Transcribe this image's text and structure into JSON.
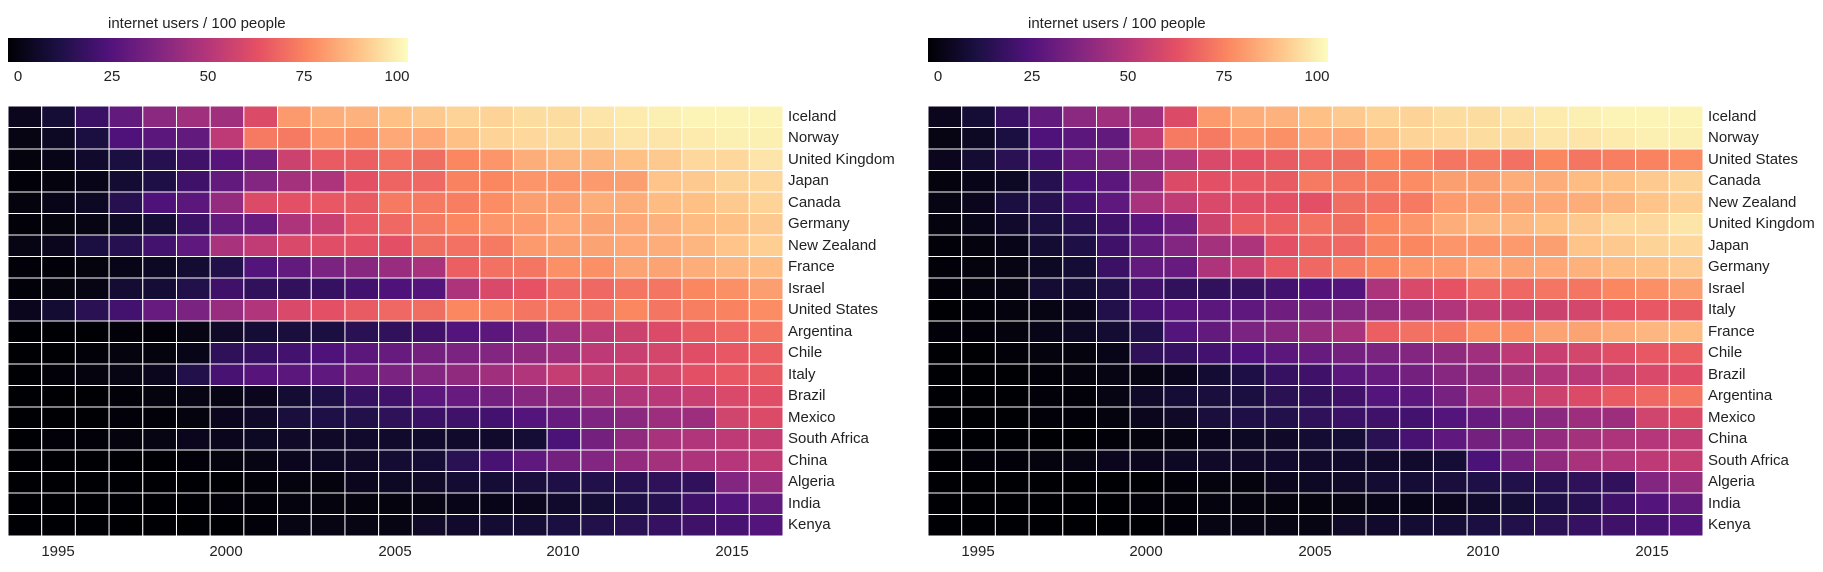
{
  "chart_data": [
    {
      "type": "heatmap",
      "colorbar": {
        "title": "internet users / 100 people",
        "ticks": [
          "0",
          "25",
          "50",
          "75",
          "100"
        ],
        "range": [
          0,
          100
        ],
        "colormap": "magma"
      },
      "x": [
        1994,
        1995,
        1996,
        1997,
        1998,
        1999,
        2000,
        2001,
        2002,
        2003,
        2004,
        2005,
        2006,
        2007,
        2008,
        2009,
        2010,
        2011,
        2012,
        2013,
        2014,
        2015,
        2016
      ],
      "x_tick_labels": [
        "1995",
        "2000",
        "2005",
        "2010",
        "2015"
      ],
      "rows": [
        "Iceland",
        "Norway",
        "United Kingdom",
        "Japan",
        "Canada",
        "Germany",
        "New Zealand",
        "France",
        "Israel",
        "United States",
        "Argentina",
        "Chile",
        "Italy",
        "Brazil",
        "Mexico",
        "South Africa",
        "China",
        "Algeria",
        "India",
        "Kenya"
      ],
      "values": [
        [
          5,
          10,
          20,
          30,
          40,
          45,
          45,
          60,
          79,
          83,
          84,
          87,
          89,
          91,
          91,
          93,
          93,
          95,
          96,
          97,
          98,
          98,
          98
        ],
        [
          3,
          6,
          12,
          25,
          28,
          30,
          52,
          72,
          72,
          78,
          77,
          82,
          82,
          87,
          91,
          92,
          93,
          93,
          95,
          95,
          96,
          97,
          97
        ],
        [
          2,
          4,
          8,
          12,
          15,
          21,
          27,
          33,
          56,
          65,
          66,
          70,
          69,
          75,
          78,
          83,
          85,
          85,
          87,
          89,
          92,
          92,
          95
        ],
        [
          1,
          2,
          4,
          9,
          13,
          21,
          30,
          38,
          46,
          48,
          62,
          67,
          68,
          74,
          75,
          78,
          78,
          79,
          80,
          88,
          89,
          91,
          92
        ],
        [
          2,
          4,
          6,
          15,
          25,
          28,
          42,
          60,
          62,
          64,
          65,
          72,
          72,
          73,
          76,
          80,
          80,
          83,
          83,
          86,
          87,
          89,
          91
        ],
        [
          1,
          2,
          3,
          6,
          10,
          20,
          30,
          31,
          48,
          55,
          64,
          68,
          72,
          75,
          78,
          79,
          82,
          81,
          82,
          84,
          86,
          87,
          89
        ],
        [
          3,
          5,
          12,
          15,
          22,
          29,
          47,
          53,
          59,
          61,
          62,
          62,
          69,
          70,
          72,
          79,
          80,
          81,
          82,
          83,
          85,
          88,
          90
        ],
        [
          1,
          1,
          2,
          4,
          6,
          9,
          14,
          26,
          30,
          36,
          39,
          43,
          47,
          66,
          70,
          71,
          77,
          77,
          81,
          81,
          83,
          85,
          86
        ],
        [
          1,
          2,
          3,
          9,
          10,
          14,
          21,
          18,
          18,
          19,
          22,
          25,
          26,
          48,
          59,
          63,
          68,
          68,
          71,
          71,
          75,
          77,
          80
        ],
        [
          5,
          9,
          16,
          22,
          31,
          36,
          43,
          49,
          59,
          62,
          65,
          68,
          69,
          75,
          74,
          71,
          72,
          70,
          75,
          71,
          73,
          74,
          76
        ],
        [
          0,
          0,
          0,
          1,
          1,
          3,
          7,
          10,
          11,
          12,
          16,
          18,
          21,
          26,
          28,
          35,
          45,
          51,
          56,
          60,
          65,
          68,
          71
        ],
        [
          0,
          0,
          1,
          2,
          2,
          4,
          17,
          19,
          22,
          25,
          28,
          31,
          34,
          36,
          38,
          41,
          45,
          52,
          55,
          58,
          61,
          64,
          66
        ],
        [
          0,
          1,
          2,
          3,
          5,
          14,
          23,
          27,
          28,
          29,
          33,
          36,
          38,
          41,
          45,
          49,
          54,
          54,
          56,
          58,
          62,
          64,
          65
        ],
        [
          0,
          0,
          0,
          1,
          2,
          3,
          3,
          5,
          9,
          13,
          19,
          21,
          28,
          31,
          34,
          39,
          41,
          46,
          49,
          51,
          55,
          59,
          61
        ],
        [
          0,
          0,
          0,
          1,
          1,
          2,
          5,
          7,
          11,
          13,
          14,
          17,
          20,
          21,
          22,
          26,
          31,
          37,
          40,
          44,
          44,
          57,
          60
        ],
        [
          0,
          1,
          1,
          2,
          3,
          5,
          5,
          6,
          7,
          7,
          8,
          8,
          8,
          8,
          8,
          10,
          24,
          34,
          41,
          47,
          49,
          52,
          54
        ],
        [
          0,
          0,
          0,
          0,
          0,
          1,
          2,
          3,
          5,
          6,
          7,
          9,
          10,
          16,
          23,
          29,
          34,
          38,
          42,
          46,
          48,
          50,
          53
        ],
        [
          0,
          0,
          0,
          0,
          0,
          0,
          0,
          1,
          2,
          2,
          5,
          6,
          7,
          9,
          10,
          11,
          13,
          14,
          15,
          17,
          18,
          38,
          43
        ],
        [
          0,
          0,
          0,
          0,
          0,
          0,
          1,
          1,
          2,
          2,
          2,
          2,
          3,
          4,
          4,
          5,
          8,
          10,
          13,
          15,
          21,
          26,
          30
        ],
        [
          0,
          0,
          0,
          0,
          0,
          0,
          0,
          1,
          3,
          3,
          3,
          3,
          7,
          8,
          9,
          10,
          12,
          14,
          16,
          19,
          21,
          23,
          26
        ]
      ]
    },
    {
      "type": "heatmap",
      "colorbar": {
        "title": "internet users / 100 people",
        "ticks": [
          "0",
          "25",
          "50",
          "75",
          "100"
        ],
        "range": [
          0,
          100
        ],
        "colormap": "magma"
      },
      "x": [
        1994,
        1995,
        1996,
        1997,
        1998,
        1999,
        2000,
        2001,
        2002,
        2003,
        2004,
        2005,
        2006,
        2007,
        2008,
        2009,
        2010,
        2011,
        2012,
        2013,
        2014,
        2015,
        2016
      ],
      "x_tick_labels": [
        "1995",
        "2000",
        "2005",
        "2010",
        "2015"
      ],
      "rows": [
        "Iceland",
        "Norway",
        "United States",
        "Canada",
        "New Zealand",
        "United Kingdom",
        "Japan",
        "Germany",
        "Israel",
        "Italy",
        "France",
        "Chile",
        "Brazil",
        "Argentina",
        "Mexico",
        "China",
        "South Africa",
        "Algeria",
        "India",
        "Kenya"
      ],
      "values": [
        [
          5,
          10,
          20,
          30,
          40,
          45,
          45,
          60,
          79,
          83,
          84,
          87,
          89,
          91,
          91,
          93,
          93,
          95,
          96,
          97,
          98,
          98,
          98
        ],
        [
          3,
          6,
          12,
          25,
          28,
          30,
          52,
          72,
          72,
          78,
          77,
          82,
          82,
          87,
          91,
          92,
          93,
          93,
          95,
          95,
          96,
          97,
          97
        ],
        [
          5,
          9,
          16,
          22,
          31,
          36,
          43,
          49,
          59,
          62,
          65,
          68,
          69,
          75,
          74,
          71,
          72,
          70,
          75,
          71,
          73,
          74,
          76
        ],
        [
          2,
          4,
          6,
          15,
          25,
          28,
          42,
          60,
          62,
          64,
          65,
          72,
          72,
          73,
          76,
          80,
          80,
          83,
          83,
          86,
          87,
          89,
          91
        ],
        [
          3,
          5,
          12,
          15,
          22,
          29,
          47,
          53,
          59,
          61,
          62,
          62,
          69,
          70,
          72,
          79,
          80,
          81,
          82,
          83,
          85,
          88,
          90
        ],
        [
          2,
          4,
          8,
          12,
          15,
          21,
          27,
          33,
          56,
          65,
          66,
          70,
          69,
          75,
          78,
          83,
          85,
          85,
          87,
          89,
          92,
          92,
          95
        ],
        [
          1,
          2,
          4,
          9,
          13,
          21,
          30,
          38,
          46,
          48,
          62,
          67,
          68,
          74,
          75,
          78,
          78,
          79,
          80,
          88,
          89,
          91,
          92
        ],
        [
          1,
          2,
          3,
          6,
          10,
          20,
          30,
          31,
          48,
          55,
          64,
          68,
          72,
          75,
          78,
          79,
          82,
          81,
          82,
          84,
          86,
          87,
          89
        ],
        [
          1,
          2,
          3,
          9,
          10,
          14,
          21,
          18,
          18,
          19,
          22,
          25,
          26,
          48,
          59,
          63,
          68,
          68,
          71,
          71,
          75,
          77,
          80
        ],
        [
          0,
          1,
          2,
          3,
          5,
          14,
          23,
          27,
          28,
          29,
          33,
          36,
          38,
          41,
          45,
          49,
          54,
          54,
          56,
          58,
          62,
          64,
          65
        ],
        [
          1,
          1,
          2,
          4,
          6,
          9,
          14,
          26,
          30,
          36,
          39,
          43,
          47,
          66,
          70,
          71,
          77,
          77,
          81,
          81,
          83,
          85,
          86
        ],
        [
          0,
          0,
          1,
          2,
          2,
          4,
          17,
          19,
          22,
          25,
          28,
          31,
          34,
          36,
          38,
          41,
          45,
          52,
          55,
          58,
          61,
          64,
          66
        ],
        [
          0,
          0,
          0,
          1,
          2,
          3,
          3,
          5,
          9,
          13,
          19,
          21,
          28,
          31,
          34,
          39,
          41,
          46,
          49,
          51,
          55,
          59,
          61
        ],
        [
          0,
          0,
          0,
          1,
          1,
          3,
          7,
          10,
          11,
          12,
          16,
          18,
          21,
          26,
          28,
          35,
          45,
          51,
          56,
          60,
          65,
          68,
          71
        ],
        [
          0,
          0,
          0,
          1,
          1,
          2,
          5,
          7,
          11,
          13,
          14,
          17,
          20,
          21,
          22,
          26,
          31,
          37,
          40,
          44,
          44,
          57,
          60
        ],
        [
          0,
          0,
          0,
          0,
          0,
          1,
          2,
          3,
          5,
          6,
          7,
          9,
          10,
          16,
          23,
          29,
          34,
          38,
          42,
          46,
          48,
          50,
          53
        ],
        [
          0,
          1,
          1,
          2,
          3,
          5,
          5,
          6,
          7,
          7,
          8,
          8,
          8,
          8,
          8,
          10,
          24,
          34,
          41,
          47,
          49,
          52,
          54
        ],
        [
          0,
          0,
          0,
          0,
          0,
          0,
          0,
          1,
          2,
          2,
          5,
          6,
          7,
          9,
          10,
          11,
          13,
          14,
          15,
          17,
          18,
          38,
          43
        ],
        [
          0,
          0,
          0,
          0,
          0,
          0,
          1,
          1,
          2,
          2,
          2,
          2,
          3,
          4,
          4,
          5,
          8,
          10,
          13,
          15,
          21,
          26,
          30
        ],
        [
          0,
          0,
          0,
          0,
          0,
          0,
          0,
          1,
          3,
          3,
          3,
          3,
          7,
          8,
          9,
          10,
          12,
          14,
          16,
          19,
          21,
          23,
          26
        ]
      ]
    }
  ]
}
